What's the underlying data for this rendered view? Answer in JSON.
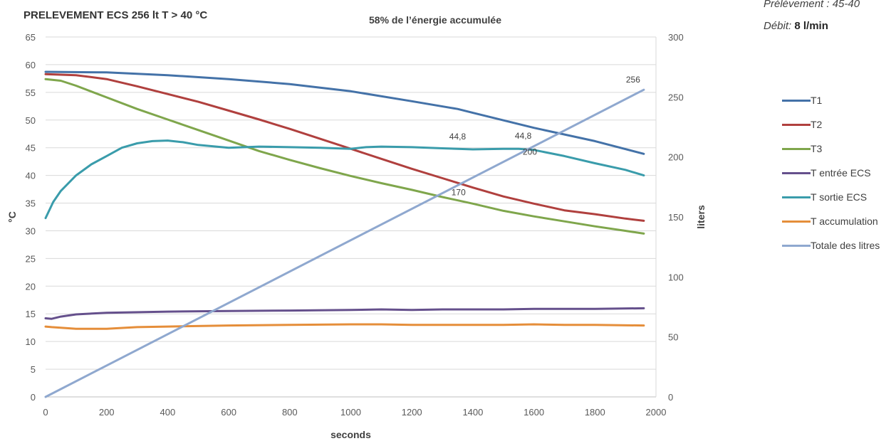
{
  "chart_data": {
    "type": "line",
    "title": "PRELEVEMENT ECS   256 lt T > 40 °C",
    "subtitle": "58% de l’énergie accumulée",
    "info": {
      "prelevement": "Prélèvement : 45-40",
      "debit_label": "Débit:",
      "debit_value": "8 l/min"
    },
    "xlabel": "seconds",
    "ylabel": "°C",
    "y2label": "liters",
    "xlim": [
      0,
      2000
    ],
    "ylim": [
      0,
      65
    ],
    "y2lim": [
      0,
      300
    ],
    "x_ticks": [
      0,
      200,
      400,
      600,
      800,
      1000,
      1200,
      1400,
      1600,
      1800,
      2000
    ],
    "y_ticks": [
      0,
      5,
      10,
      15,
      20,
      25,
      30,
      35,
      40,
      45,
      50,
      55,
      60,
      65
    ],
    "y2_ticks": [
      0,
      50,
      100,
      150,
      200,
      250,
      300
    ],
    "grid": true,
    "legend_position": "right",
    "series": [
      {
        "name": "T1",
        "color": "#4472a8",
        "axis": "left",
        "x": [
          0,
          200,
          400,
          600,
          800,
          1000,
          1200,
          1350,
          1400,
          1600,
          1800,
          1960
        ],
        "y": [
          58.7,
          58.6,
          58.1,
          57.4,
          56.5,
          55.2,
          53.4,
          52.0,
          51.3,
          48.6,
          46.2,
          43.9
        ]
      },
      {
        "name": "T2",
        "color": "#b0403e",
        "axis": "left",
        "x": [
          0,
          100,
          200,
          300,
          400,
          500,
          600,
          700,
          800,
          900,
          1000,
          1100,
          1200,
          1300,
          1400,
          1500,
          1600,
          1700,
          1800,
          1900,
          1960
        ],
        "y": [
          58.3,
          58.1,
          57.4,
          56.1,
          54.7,
          53.3,
          51.7,
          50.1,
          48.4,
          46.6,
          44.8,
          43.0,
          41.2,
          39.5,
          37.8,
          36.2,
          34.9,
          33.7,
          33.0,
          32.2,
          31.8
        ]
      },
      {
        "name": "T3",
        "color": "#7fa64c",
        "axis": "left",
        "x": [
          0,
          50,
          100,
          200,
          300,
          400,
          500,
          600,
          700,
          800,
          900,
          1000,
          1100,
          1200,
          1300,
          1400,
          1500,
          1600,
          1700,
          1800,
          1900,
          1960
        ],
        "y": [
          57.4,
          57.1,
          56.2,
          54.1,
          52.0,
          50.1,
          48.2,
          46.3,
          44.4,
          42.8,
          41.3,
          39.9,
          38.6,
          37.4,
          36.1,
          34.9,
          33.6,
          32.6,
          31.7,
          30.8,
          30.0,
          29.5
        ]
      },
      {
        "name": "T entrée ECS",
        "color": "#65508c",
        "axis": "left",
        "x": [
          0,
          20,
          50,
          100,
          200,
          400,
          600,
          800,
          1000,
          1100,
          1200,
          1300,
          1400,
          1500,
          1600,
          1800,
          1960
        ],
        "y": [
          14.2,
          14.1,
          14.5,
          14.9,
          15.2,
          15.4,
          15.5,
          15.6,
          15.7,
          15.8,
          15.7,
          15.8,
          15.8,
          15.8,
          15.9,
          15.9,
          16.0
        ]
      },
      {
        "name": "T sortie ECS",
        "color": "#3a9cab",
        "axis": "left",
        "x": [
          0,
          25,
          50,
          100,
          150,
          200,
          250,
          300,
          350,
          400,
          450,
          500,
          600,
          700,
          800,
          900,
          1000,
          1050,
          1100,
          1200,
          1300,
          1350,
          1400,
          1500,
          1550,
          1600,
          1700,
          1800,
          1900,
          1960
        ],
        "y": [
          32.3,
          35.2,
          37.2,
          40.0,
          42.0,
          43.5,
          45.0,
          45.8,
          46.2,
          46.3,
          46.0,
          45.5,
          45.0,
          45.2,
          45.1,
          45.0,
          44.8,
          45.1,
          45.2,
          45.1,
          44.9,
          44.8,
          44.7,
          44.8,
          44.8,
          44.6,
          43.5,
          42.2,
          41.0,
          40.0
        ]
      },
      {
        "name": "T accumulation",
        "color": "#e58e3a",
        "axis": "left",
        "x": [
          0,
          20,
          100,
          200,
          300,
          400,
          600,
          800,
          1000,
          1100,
          1200,
          1300,
          1400,
          1500,
          1600,
          1700,
          1800,
          1960
        ],
        "y": [
          12.7,
          12.6,
          12.3,
          12.3,
          12.6,
          12.7,
          12.9,
          13.0,
          13.1,
          13.1,
          13.0,
          13.0,
          13.0,
          13.0,
          13.1,
          13.0,
          13.0,
          12.9
        ]
      },
      {
        "name": "Totale des litres",
        "color": "#8fa8cf",
        "axis": "right",
        "x": [
          0,
          1960
        ],
        "y": [
          0,
          256
        ]
      }
    ],
    "annotations": [
      {
        "text": "256",
        "x": 1925,
        "y2": 262
      },
      {
        "text": "44,8",
        "x": 1350,
        "y": 46.5
      },
      {
        "text": "44,8",
        "x": 1565,
        "y": 46.6
      },
      {
        "text": "200",
        "x": 1587,
        "y2": 202
      },
      {
        "text": "170",
        "x": 1353,
        "y2": 168
      }
    ]
  }
}
